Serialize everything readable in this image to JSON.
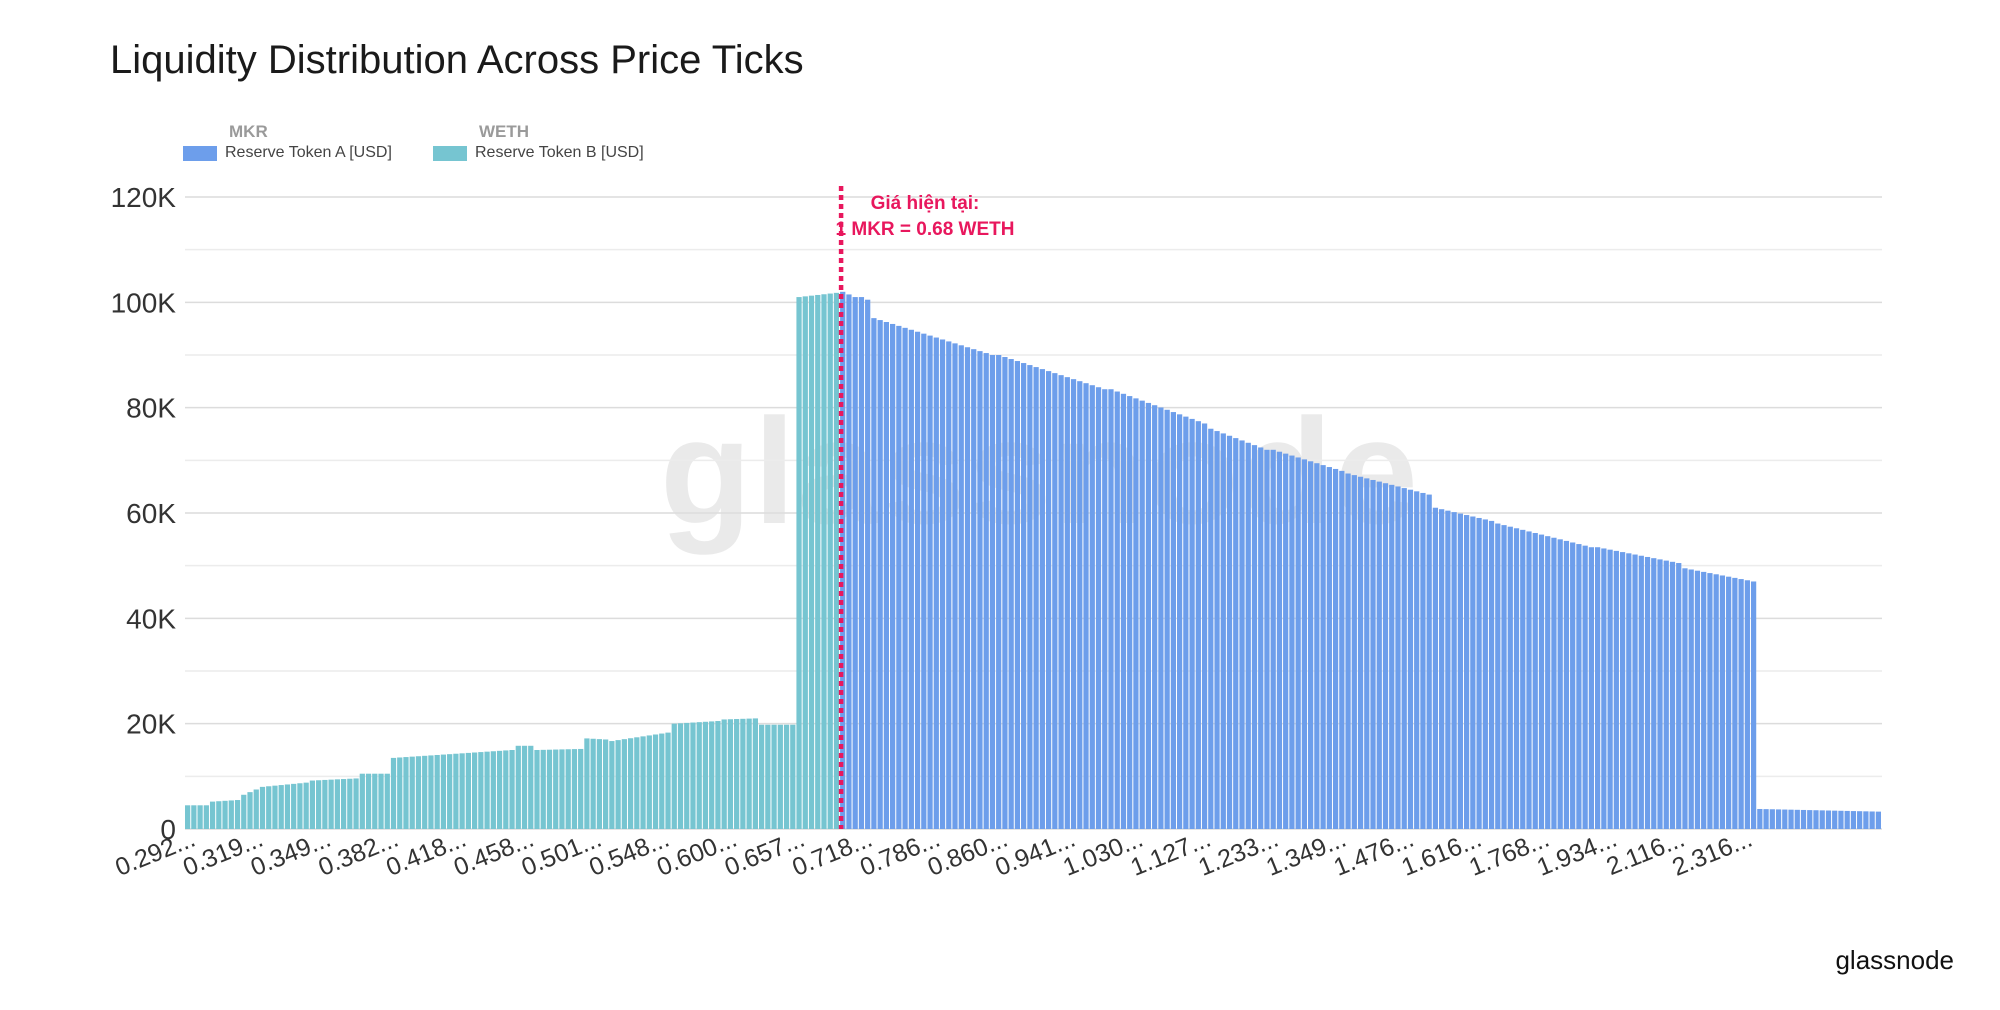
{
  "chart_data": {
    "type": "bar",
    "title": "Liquidity Distribution Across Price Ticks",
    "xlabel": "",
    "ylabel": "",
    "ylim": [
      0,
      120000
    ],
    "y_ticks": [
      "0",
      "20K",
      "40K",
      "60K",
      "80K",
      "100K",
      "120K"
    ],
    "y_tick_values": [
      0,
      20000,
      40000,
      60000,
      80000,
      100000,
      120000
    ],
    "x_tick_labels": [
      "0.292...",
      "0.319...",
      "0.349...",
      "0.382...",
      "0.418...",
      "0.458...",
      "0.501...",
      "0.548...",
      "0.600...",
      "0.657...",
      "0.718...",
      "0.786...",
      "0.860...",
      "0.941...",
      "1.030...",
      "1.127...",
      "1.233...",
      "1.349...",
      "1.476...",
      "1.616...",
      "1.768...",
      "1.934...",
      "2.116...",
      "2.316..."
    ],
    "grid": true,
    "legend_position": "top-left",
    "series": [
      {
        "name": "Reserve Token A [USD]",
        "token": "MKR",
        "color": "#6d9eeb",
        "segments": [
          {
            "count": 3,
            "start": 102000,
            "end": 101000
          },
          {
            "count": 2,
            "start": 101000,
            "end": 100500
          },
          {
            "count": 20,
            "start": 97000,
            "end": 90000
          },
          {
            "count": 18,
            "start": 90000,
            "end": 83500
          },
          {
            "count": 16,
            "start": 83500,
            "end": 77000
          },
          {
            "count": 10,
            "start": 76000,
            "end": 72000
          },
          {
            "count": 12,
            "start": 72000,
            "end": 68000
          },
          {
            "count": 14,
            "start": 67500,
            "end": 63500
          },
          {
            "count": 10,
            "start": 61000,
            "end": 58500
          },
          {
            "count": 16,
            "start": 58000,
            "end": 53500
          },
          {
            "count": 14,
            "start": 53500,
            "end": 50500
          },
          {
            "count": 12,
            "start": 49500,
            "end": 47000
          },
          {
            "count": 20,
            "start": 3800,
            "end": 3300
          }
        ]
      },
      {
        "name": "Reserve Token B [USD]",
        "token": "WETH",
        "color": "#76c5d1",
        "segments": [
          {
            "count": 4,
            "start": 4500,
            "end": 4500
          },
          {
            "count": 5,
            "start": 5200,
            "end": 5500
          },
          {
            "count": 3,
            "start": 6500,
            "end": 7500
          },
          {
            "count": 8,
            "start": 8000,
            "end": 8800
          },
          {
            "count": 8,
            "start": 9200,
            "end": 9600
          },
          {
            "count": 5,
            "start": 10500,
            "end": 10500
          },
          {
            "count": 20,
            "start": 13500,
            "end": 15000
          },
          {
            "count": 3,
            "start": 15800,
            "end": 15800
          },
          {
            "count": 8,
            "start": 15000,
            "end": 15200
          },
          {
            "count": 4,
            "start": 17200,
            "end": 17000
          },
          {
            "count": 10,
            "start": 16700,
            "end": 18300
          },
          {
            "count": 8,
            "start": 20000,
            "end": 20500
          },
          {
            "count": 6,
            "start": 20800,
            "end": 21000
          },
          {
            "count": 6,
            "start": 19800,
            "end": 19800
          },
          {
            "count": 7,
            "start": 101000,
            "end": 101800
          }
        ]
      }
    ],
    "annotation": {
      "line1": "Giá hiện tại:",
      "line2": "1 MKR = 0.68 WETH",
      "color": "#e8175d"
    }
  },
  "legend": {
    "a_series": "MKR",
    "a_label": "Reserve Token A [USD]",
    "b_series": "WETH",
    "b_label": "Reserve Token B [USD]"
  },
  "watermark": "glassnode",
  "brand": "glassnode"
}
